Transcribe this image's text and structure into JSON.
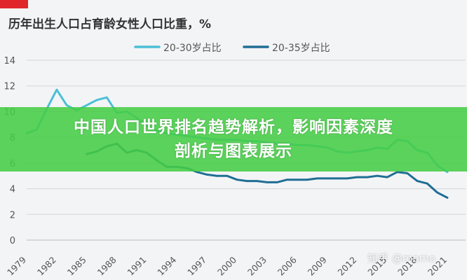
{
  "banner": {
    "line1": "中国人口世界排名趋势解析，影响因素深度",
    "line2": "剖析与图表展示"
  },
  "watermark": "知乎 @momo",
  "colors": {
    "series_20_30": "#4bbfd6",
    "series_20_35": "#1f6e94",
    "banner": "#46cd46",
    "grid": "#d3d6da",
    "red_tab": "#e0262a"
  },
  "chart_data": {
    "type": "line",
    "title": "历年出生人口占育龄女性人口比重，%",
    "xlabel": "",
    "ylabel": "",
    "ylim": [
      0,
      14
    ],
    "yticks": [
      "0",
      "2",
      "4",
      "6",
      "8",
      "10",
      "12",
      "14"
    ],
    "xticks": [
      "1979",
      "1982",
      "1985",
      "1988",
      "1991",
      "1994",
      "1997",
      "2000",
      "2003",
      "2006",
      "2009",
      "2012",
      "2015",
      "2018",
      "2021"
    ],
    "grid": true,
    "legend": "top",
    "series": [
      {
        "name": "20-30岁占比",
        "x": [
          1979,
          1980,
          1981,
          1982,
          1983,
          1984,
          1985,
          1986,
          1987,
          1988,
          1989,
          1990,
          1991,
          1992,
          1993,
          1994,
          1995,
          1996,
          1997,
          1998,
          1999,
          2000,
          2001,
          2002,
          2003,
          2004,
          2005,
          2006,
          2007,
          2008,
          2009,
          2010,
          2011,
          2012,
          2013,
          2014,
          2015,
          2016,
          2017,
          2018,
          2019,
          2020,
          2021
        ],
        "values": [
          8.3,
          8.6,
          10.2,
          11.7,
          10.5,
          10.1,
          10.5,
          10.9,
          11.1,
          9.9,
          10.0,
          9.5,
          8.9,
          8.5,
          8.3,
          8.2,
          8.1,
          8.0,
          7.9,
          7.8,
          7.8,
          7.8,
          7.7,
          7.7,
          7.6,
          7.5,
          7.5,
          7.4,
          7.4,
          7.3,
          7.2,
          6.9,
          6.8,
          6.9,
          7.0,
          7.2,
          7.1,
          7.8,
          7.7,
          7.0,
          6.8,
          5.8,
          5.3
        ]
      },
      {
        "name": "20-35岁占比",
        "x": [
          1985,
          1986,
          1987,
          1988,
          1989,
          1990,
          1991,
          1992,
          1993,
          1994,
          1995,
          1996,
          1997,
          1998,
          1999,
          2000,
          2001,
          2002,
          2003,
          2004,
          2005,
          2006,
          2007,
          2008,
          2009,
          2010,
          2011,
          2012,
          2013,
          2014,
          2015,
          2016,
          2017,
          2018,
          2019,
          2020,
          2021
        ],
        "values": [
          6.7,
          6.9,
          7.3,
          7.5,
          6.8,
          7.0,
          6.8,
          6.2,
          5.7,
          5.7,
          5.6,
          5.3,
          5.1,
          5.0,
          5.0,
          4.7,
          4.6,
          4.6,
          4.5,
          4.5,
          4.7,
          4.7,
          4.7,
          4.8,
          4.8,
          4.8,
          4.8,
          4.9,
          4.9,
          5.0,
          4.9,
          5.3,
          5.2,
          4.6,
          4.4,
          3.7,
          3.3
        ]
      }
    ]
  }
}
